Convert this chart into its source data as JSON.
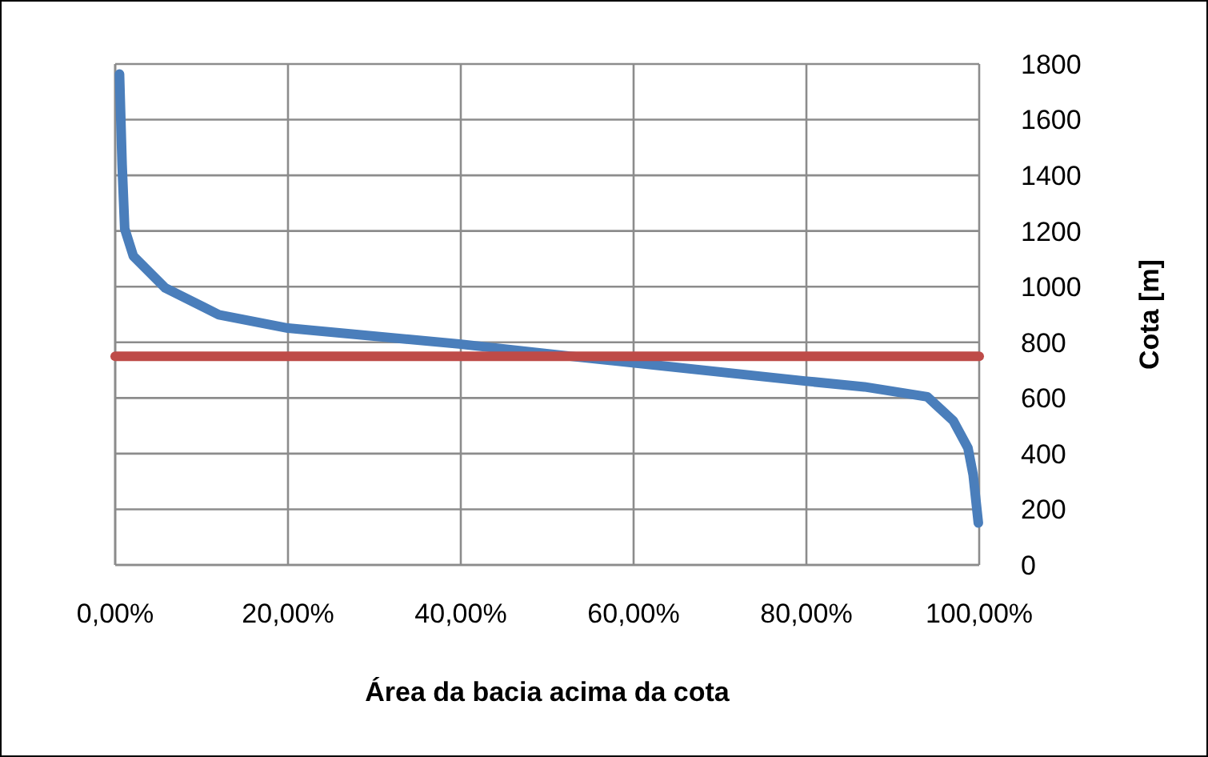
{
  "chart_data": {
    "type": "line",
    "xlabel": "Área da bacia acima da cota",
    "ylabel": "Cota [m]",
    "series": [
      {
        "color": "#4a7ebb",
        "x": [
          0.5,
          0.8,
          1.1,
          2.1,
          5.8,
          12,
          20,
          39.8,
          53.3,
          60.1,
          79.8,
          86.7,
          94,
          97,
          98.7,
          99.3,
          99.9
        ],
        "values": [
          1764,
          1438,
          1208,
          1110,
          995,
          899,
          851,
          794,
          748,
          726,
          661,
          640,
          604,
          518,
          420,
          324,
          151
        ]
      }
    ],
    "ref_lines": [
      {
        "axis": "y",
        "value": 750,
        "color": "#be4b48"
      }
    ],
    "xlim": [
      0,
      100
    ],
    "xticks": [
      {
        "value": 0,
        "label": "0,00%"
      },
      {
        "value": 20,
        "label": "20,00%"
      },
      {
        "value": 40,
        "label": "40,00%"
      },
      {
        "value": 60,
        "label": "60,00%"
      },
      {
        "value": 80,
        "label": "80,00%"
      },
      {
        "value": 100,
        "label": "100,00%"
      }
    ],
    "ylim": [
      0,
      1800
    ],
    "yticks": [
      0,
      200,
      400,
      600,
      800,
      1000,
      1200,
      1400,
      1600,
      1800
    ],
    "grid": true,
    "line_style": "solid"
  }
}
